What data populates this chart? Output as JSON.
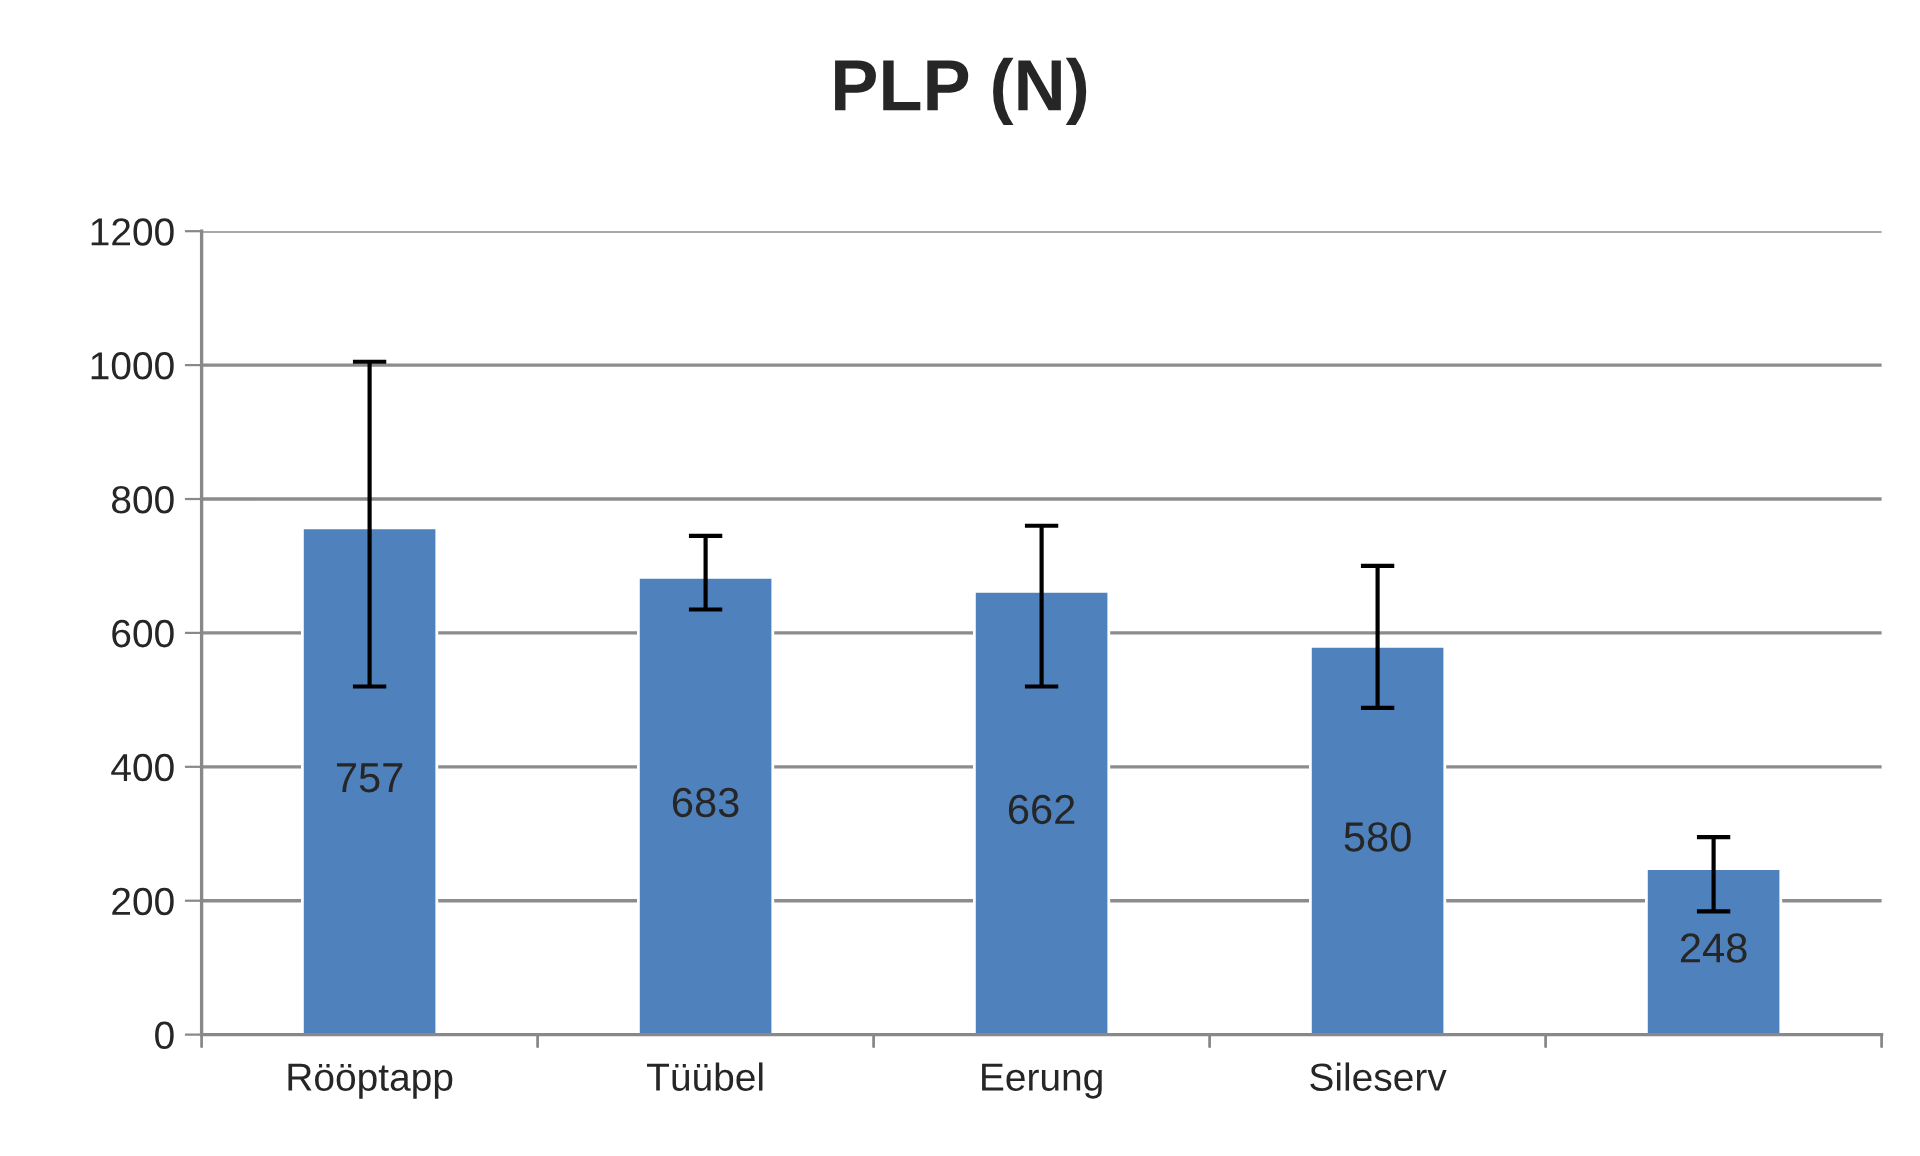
{
  "chart_data": {
    "type": "bar",
    "title": "PLP (N)",
    "categories": [
      "Rööptapp",
      "Tüübel",
      "Eerung",
      "Sileserv",
      null
    ],
    "values": [
      757,
      683,
      662,
      580,
      248
    ],
    "errors": [
      [
        520,
        1005
      ],
      [
        635,
        745
      ],
      [
        520,
        760
      ],
      [
        488,
        700
      ],
      [
        184,
        295
      ]
    ],
    "color": "#4f81bd",
    "ylim": [
      0,
      1200
    ],
    "yticks": [
      0,
      200,
      400,
      600,
      800,
      1000,
      1200
    ],
    "grid": "y",
    "data_labels": true
  }
}
